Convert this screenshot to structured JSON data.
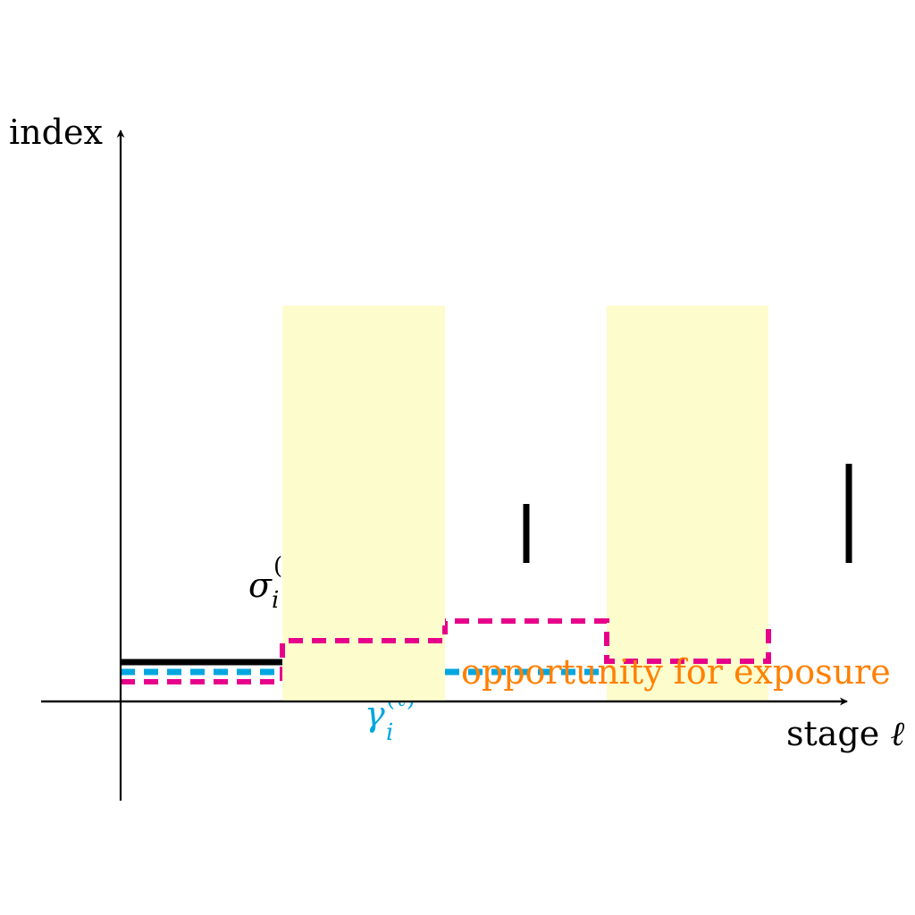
{
  "axes": {
    "y_label": "index",
    "x_label_text": "stage ",
    "x_label_symbol": "ℓ"
  },
  "labels": {
    "sigma": {
      "base": "σ",
      "sub": "i",
      "sup": "("
    },
    "gamma": {
      "base": "γ",
      "sub": "i",
      "sup": "(ℓ)"
    },
    "annotation": "opportunity for exposure"
  },
  "colors": {
    "axis": "#000000",
    "shade": "#fdfccc",
    "sigma": "#000000",
    "gamma": "#00a6e0",
    "magenta": "#e6008a",
    "annotation": "#ff8000"
  }
}
